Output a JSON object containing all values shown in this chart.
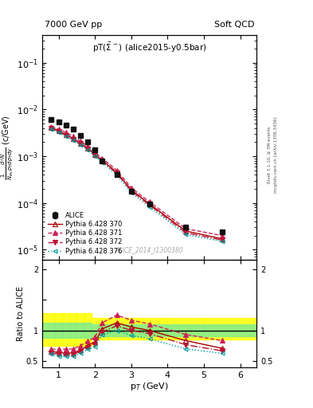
{
  "title_left": "7000 GeV pp",
  "title_right": "Soft QCD",
  "annotation": "pT($\\bar{\\Sigma}$) (alice2015-y0.5bar)",
  "watermark": "ALICE_2014_I1300380",
  "right_label": "mcplots.cern.ch [arXiv:1306.3436]",
  "right_label2": "Rivet 3.1.10, ≥ 3M events",
  "ylabel": "$\\frac{1}{N_{ev}}\\frac{d^2N}{p_{T}dp_{T}dy}$ (c/GeV)",
  "ylabel_ratio": "Ratio to ALICE",
  "xlabel": "p$_T$ (GeV)",
  "ylim_main": [
    6e-06,
    0.4
  ],
  "xlim": [
    0.55,
    6.45
  ],
  "ylim_ratio": [
    0.4,
    2.15
  ],
  "alice_x": [
    0.8,
    1.0,
    1.2,
    1.4,
    1.6,
    1.8,
    2.0,
    2.2,
    2.6,
    3.0,
    3.5,
    4.5,
    5.5
  ],
  "alice_y": [
    0.0062,
    0.0055,
    0.0046,
    0.0038,
    0.0028,
    0.002,
    0.00135,
    0.0008,
    0.0004,
    0.00018,
    9.5e-05,
    3e-05,
    2.4e-05
  ],
  "alice_yerr_stat": [
    0.0003,
    0.00025,
    0.0002,
    0.00018,
    0.00014,
    0.0001,
    7e-05,
    4e-05,
    2e-05,
    9e-06,
    5e-06,
    2e-06,
    2e-06
  ],
  "p370_x": [
    0.8,
    1.0,
    1.2,
    1.4,
    1.6,
    1.8,
    2.0,
    2.2,
    2.6,
    3.0,
    3.5,
    4.5,
    5.5
  ],
  "p370_y": [
    0.0041,
    0.0035,
    0.0029,
    0.0024,
    0.0019,
    0.0015,
    0.0011,
    0.00082,
    0.00045,
    0.00019,
    9.5e-05,
    2.5e-05,
    1.7e-05
  ],
  "p371_x": [
    0.8,
    1.0,
    1.2,
    1.4,
    1.6,
    1.8,
    2.0,
    2.2,
    2.6,
    3.0,
    3.5,
    4.5,
    5.5
  ],
  "p371_y": [
    0.0043,
    0.0038,
    0.0032,
    0.00265,
    0.0021,
    0.00165,
    0.0012,
    0.0009,
    0.0005,
    0.00021,
    0.000105,
    2.8e-05,
    2e-05
  ],
  "p372_x": [
    0.8,
    1.0,
    1.2,
    1.4,
    1.6,
    1.8,
    2.0,
    2.2,
    2.6,
    3.0,
    3.5,
    4.5,
    5.5
  ],
  "p372_y": [
    0.0039,
    0.0034,
    0.0028,
    0.0023,
    0.00185,
    0.00145,
    0.00105,
    0.00078,
    0.00043,
    0.00018,
    9e-05,
    2.3e-05,
    1.6e-05
  ],
  "p376_x": [
    0.8,
    1.0,
    1.2,
    1.4,
    1.6,
    1.8,
    2.0,
    2.2,
    2.6,
    3.0,
    3.5,
    4.5,
    5.5
  ],
  "p376_y": [
    0.0038,
    0.0032,
    0.00265,
    0.0022,
    0.00175,
    0.00138,
    0.001,
    0.00074,
    0.0004,
    0.000165,
    8.2e-05,
    2.1e-05,
    1.5e-05
  ],
  "band_x_edges": [
    0.55,
    0.9,
    1.1,
    1.3,
    1.5,
    1.7,
    1.9,
    2.1,
    2.35,
    2.85,
    3.25,
    4.0,
    5.0,
    6.45
  ],
  "band_yellow_lo": [
    0.75,
    0.75,
    0.75,
    0.75,
    0.75,
    0.75,
    0.85,
    0.85,
    0.85,
    0.85,
    0.85,
    0.85,
    0.85
  ],
  "band_yellow_hi": [
    1.28,
    1.28,
    1.28,
    1.28,
    1.28,
    1.28,
    1.2,
    1.2,
    1.2,
    1.2,
    1.2,
    1.2,
    1.2
  ],
  "band_green_lo": [
    0.88,
    0.88,
    0.88,
    0.88,
    0.88,
    0.88,
    0.9,
    0.9,
    0.9,
    0.9,
    0.9,
    0.9,
    0.9
  ],
  "band_green_hi": [
    1.12,
    1.12,
    1.12,
    1.12,
    1.12,
    1.12,
    1.1,
    1.1,
    1.1,
    1.1,
    1.1,
    1.1,
    1.1
  ],
  "color_alice": "#111111",
  "color_370": "#aa0000",
  "color_371": "#cc2255",
  "color_372": "#bb1133",
  "color_376": "#009999",
  "legend_entries": [
    "ALICE",
    "Pythia 6.428 370",
    "Pythia 6.428 371",
    "Pythia 6.428 372",
    "Pythia 6.428 376"
  ]
}
